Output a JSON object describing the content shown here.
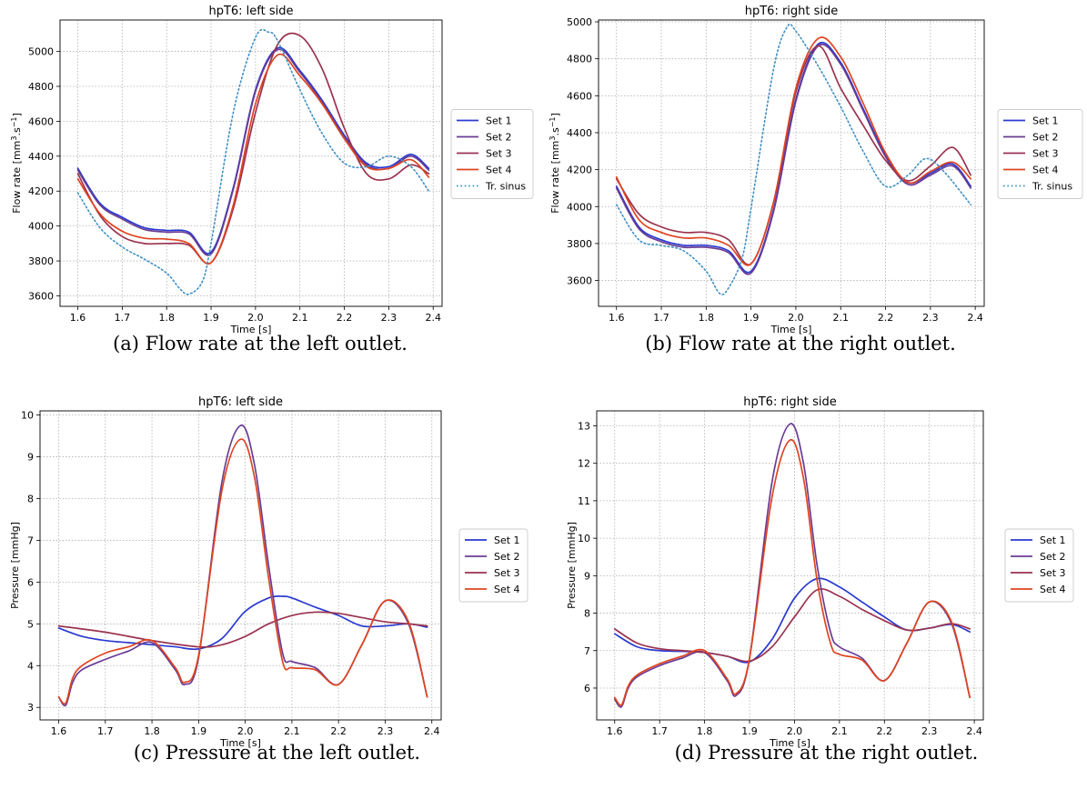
{
  "colors": {
    "set1": "#2a3ad0",
    "set2": "#6a3c94",
    "set3": "#9a3350",
    "set4": "#df4420",
    "sinus": "#3e8fc2"
  },
  "chart_data": [
    {
      "type": "line",
      "title": "hpT6: left side",
      "caption": "(a) Flow rate at the left outlet.",
      "xlabel": "Time [s]",
      "ylabel_main": "Flow rate",
      "ylabel_unit_base": "[mm",
      "ylabel_unit_exp1": "3",
      "ylabel_unit_mid": ".s",
      "ylabel_unit_exp2": "−1",
      "ylabel_unit_close": "]",
      "xlim": [
        1.56,
        2.42
      ],
      "ylim": [
        3540,
        5180
      ],
      "xticks": [
        1.6,
        1.7,
        1.8,
        1.9,
        2.0,
        2.1,
        2.2,
        2.3,
        2.4
      ],
      "xtick_labels": [
        "1.6",
        "1.7",
        "1.8",
        "1.9",
        "2.0",
        "2.1",
        "2.2",
        "2.3",
        "2.4"
      ],
      "yticks": [
        3600,
        3800,
        4000,
        4200,
        4400,
        4600,
        4800,
        5000
      ],
      "ytick_labels": [
        "3600",
        "3800",
        "4000",
        "4200",
        "4400",
        "4600",
        "4800",
        "5000"
      ],
      "grid": true,
      "legend": "right",
      "series": [
        {
          "name": "Set 1",
          "key": "set1",
          "style": "solid",
          "x": [
            1.6,
            1.65,
            1.7,
            1.75,
            1.8,
            1.85,
            1.9,
            1.95,
            2.0,
            2.05,
            2.1,
            2.15,
            2.2,
            2.25,
            2.3,
            2.35,
            2.39
          ],
          "y": [
            4330,
            4130,
            4050,
            3990,
            3975,
            3965,
            3850,
            4220,
            4780,
            5020,
            4890,
            4720,
            4520,
            4360,
            4340,
            4410,
            4330
          ]
        },
        {
          "name": "Set 2",
          "key": "set2",
          "style": "solid",
          "x": [
            1.6,
            1.65,
            1.7,
            1.75,
            1.8,
            1.85,
            1.9,
            1.95,
            2.0,
            2.05,
            2.1,
            2.15,
            2.2,
            2.25,
            2.3,
            2.35,
            2.39
          ],
          "y": [
            4320,
            4120,
            4040,
            3980,
            3965,
            3955,
            3840,
            4210,
            4770,
            5010,
            4880,
            4710,
            4510,
            4350,
            4330,
            4400,
            4320
          ]
        },
        {
          "name": "Set 3",
          "key": "set3",
          "style": "solid",
          "x": [
            1.6,
            1.65,
            1.7,
            1.75,
            1.8,
            1.85,
            1.9,
            1.95,
            2.0,
            2.05,
            2.1,
            2.15,
            2.2,
            2.25,
            2.3,
            2.35,
            2.39
          ],
          "y": [
            4300,
            4060,
            3940,
            3900,
            3900,
            3890,
            3790,
            4100,
            4650,
            5040,
            5090,
            4900,
            4560,
            4300,
            4270,
            4350,
            4300
          ]
        },
        {
          "name": "Set 4",
          "key": "set4",
          "style": "solid",
          "x": [
            1.6,
            1.65,
            1.7,
            1.75,
            1.8,
            1.85,
            1.9,
            1.95,
            2.0,
            2.05,
            2.1,
            2.15,
            2.2,
            2.25,
            2.3,
            2.35,
            2.39
          ],
          "y": [
            4270,
            4070,
            3970,
            3930,
            3925,
            3900,
            3790,
            4120,
            4700,
            4980,
            4860,
            4700,
            4500,
            4340,
            4330,
            4380,
            4280
          ]
        },
        {
          "name": "Tr. sinus",
          "key": "sinus",
          "style": "dotted",
          "x": [
            1.6,
            1.65,
            1.7,
            1.75,
            1.8,
            1.83,
            1.85,
            1.88,
            1.9,
            1.95,
            2.0,
            2.03,
            2.05,
            2.1,
            2.15,
            2.2,
            2.25,
            2.3,
            2.35,
            2.39
          ],
          "y": [
            4190,
            3990,
            3880,
            3810,
            3730,
            3640,
            3610,
            3680,
            3900,
            4650,
            5080,
            5110,
            5060,
            4780,
            4530,
            4360,
            4340,
            4400,
            4340,
            4200
          ]
        }
      ]
    },
    {
      "type": "line",
      "title": "hpT6: right side",
      "caption": "(b) Flow rate at the right outlet.",
      "xlabel": "Time [s]",
      "ylabel_main": "Flow rate",
      "ylabel_unit_base": "[mm",
      "ylabel_unit_exp1": "3",
      "ylabel_unit_mid": ".s",
      "ylabel_unit_exp2": "−1",
      "ylabel_unit_close": "]",
      "xlim": [
        1.56,
        2.42
      ],
      "ylim": [
        3460,
        5010
      ],
      "xticks": [
        1.6,
        1.7,
        1.8,
        1.9,
        2.0,
        2.1,
        2.2,
        2.3,
        2.4
      ],
      "xtick_labels": [
        "1.6",
        "1.7",
        "1.8",
        "1.9",
        "2.0",
        "2.1",
        "2.2",
        "2.3",
        "2.4"
      ],
      "yticks": [
        3600,
        3800,
        4000,
        4200,
        4400,
        4600,
        4800,
        5000
      ],
      "ytick_labels": [
        "3600",
        "3800",
        "4000",
        "4200",
        "4400",
        "4600",
        "4800",
        "5000"
      ],
      "grid": true,
      "legend": "right",
      "series": [
        {
          "name": "Set 1",
          "key": "set1",
          "style": "solid",
          "x": [
            1.6,
            1.65,
            1.7,
            1.75,
            1.8,
            1.85,
            1.9,
            1.95,
            2.0,
            2.05,
            2.1,
            2.15,
            2.2,
            2.25,
            2.3,
            2.35,
            2.39
          ],
          "y": [
            4110,
            3890,
            3820,
            3790,
            3790,
            3760,
            3650,
            3980,
            4580,
            4880,
            4780,
            4530,
            4280,
            4130,
            4180,
            4230,
            4110
          ]
        },
        {
          "name": "Set 2",
          "key": "set2",
          "style": "solid",
          "x": [
            1.6,
            1.65,
            1.7,
            1.75,
            1.8,
            1.85,
            1.9,
            1.95,
            2.0,
            2.05,
            2.1,
            2.15,
            2.2,
            2.25,
            2.3,
            2.35,
            2.39
          ],
          "y": [
            4100,
            3880,
            3810,
            3780,
            3780,
            3750,
            3640,
            3970,
            4570,
            4870,
            4770,
            4520,
            4270,
            4120,
            4170,
            4220,
            4100
          ]
        },
        {
          "name": "Set 3",
          "key": "set3",
          "style": "solid",
          "x": [
            1.6,
            1.65,
            1.7,
            1.75,
            1.8,
            1.85,
            1.9,
            1.95,
            2.0,
            2.05,
            2.1,
            2.15,
            2.2,
            2.25,
            2.3,
            2.35,
            2.39
          ],
          "y": [
            4150,
            3960,
            3890,
            3860,
            3860,
            3820,
            3690,
            4020,
            4620,
            4870,
            4640,
            4440,
            4250,
            4140,
            4220,
            4320,
            4170
          ]
        },
        {
          "name": "Set 4",
          "key": "set4",
          "style": "solid",
          "x": [
            1.6,
            1.65,
            1.7,
            1.75,
            1.8,
            1.85,
            1.9,
            1.95,
            2.0,
            2.05,
            2.1,
            2.15,
            2.2,
            2.25,
            2.3,
            2.35,
            2.39
          ],
          "y": [
            4160,
            3930,
            3860,
            3830,
            3830,
            3790,
            3690,
            4020,
            4640,
            4910,
            4810,
            4560,
            4290,
            4130,
            4190,
            4240,
            4150
          ]
        },
        {
          "name": "Tr. sinus",
          "key": "sinus",
          "style": "dotted",
          "x": [
            1.6,
            1.65,
            1.7,
            1.75,
            1.8,
            1.83,
            1.85,
            1.88,
            1.9,
            1.95,
            1.98,
            2.0,
            2.05,
            2.1,
            2.15,
            2.2,
            2.25,
            2.29,
            2.33,
            2.39
          ],
          "y": [
            4010,
            3820,
            3790,
            3760,
            3650,
            3530,
            3560,
            3720,
            3990,
            4740,
            4970,
            4950,
            4760,
            4540,
            4300,
            4110,
            4170,
            4260,
            4190,
            4010
          ]
        }
      ]
    },
    {
      "type": "line",
      "title": "hpT6: left side",
      "caption": "(c) Pressure at the left outlet.",
      "xlabel": "Time [s]",
      "ylabel": "Pressure [mmHg]",
      "xlim": [
        1.56,
        2.42
      ],
      "ylim": [
        2.7,
        10.1
      ],
      "xticks": [
        1.6,
        1.7,
        1.8,
        1.9,
        2.0,
        2.1,
        2.2,
        2.3,
        2.4
      ],
      "xtick_labels": [
        "1.6",
        "1.7",
        "1.8",
        "1.9",
        "2.0",
        "2.1",
        "2.2",
        "2.3",
        "2.4"
      ],
      "yticks": [
        3,
        4,
        5,
        6,
        7,
        8,
        9,
        10
      ],
      "ytick_labels": [
        "3",
        "4",
        "5",
        "6",
        "7",
        "8",
        "9",
        "10"
      ],
      "grid": true,
      "legend": "right",
      "series": [
        {
          "name": "Set 1",
          "key": "set1",
          "style": "solid",
          "x": [
            1.6,
            1.65,
            1.7,
            1.75,
            1.8,
            1.85,
            1.9,
            1.95,
            2.0,
            2.05,
            2.08,
            2.1,
            2.15,
            2.2,
            2.25,
            2.3,
            2.35,
            2.39
          ],
          "y": [
            4.9,
            4.7,
            4.6,
            4.55,
            4.5,
            4.45,
            4.4,
            4.65,
            5.3,
            5.62,
            5.66,
            5.62,
            5.4,
            5.2,
            4.95,
            4.95,
            5.0,
            4.92
          ]
        },
        {
          "name": "Set 2",
          "key": "set2",
          "style": "solid",
          "x": [
            1.6,
            1.615,
            1.63,
            1.65,
            1.7,
            1.75,
            1.8,
            1.85,
            1.87,
            1.9,
            1.95,
            1.99,
            2.02,
            2.05,
            2.08,
            2.1,
            2.15,
            2.2,
            2.25,
            2.3,
            2.35,
            2.39
          ],
          "y": [
            3.25,
            3.05,
            3.6,
            3.9,
            4.15,
            4.35,
            4.55,
            3.9,
            3.55,
            4.2,
            8.4,
            9.75,
            8.8,
            6.4,
            4.3,
            4.1,
            3.95,
            3.55,
            4.5,
            5.55,
            5.0,
            3.25
          ]
        },
        {
          "name": "Set 3",
          "key": "set3",
          "style": "solid",
          "x": [
            1.6,
            1.7,
            1.8,
            1.9,
            1.95,
            2.0,
            2.05,
            2.1,
            2.15,
            2.2,
            2.25,
            2.3,
            2.35,
            2.39
          ],
          "y": [
            4.95,
            4.8,
            4.6,
            4.45,
            4.5,
            4.7,
            5.0,
            5.2,
            5.28,
            5.25,
            5.15,
            5.05,
            5.0,
            4.95
          ]
        },
        {
          "name": "Set 4",
          "key": "set4",
          "style": "solid",
          "x": [
            1.6,
            1.615,
            1.63,
            1.65,
            1.7,
            1.75,
            1.8,
            1.85,
            1.87,
            1.9,
            1.95,
            1.99,
            2.02,
            2.05,
            2.08,
            2.1,
            2.15,
            2.2,
            2.25,
            2.3,
            2.35,
            2.39
          ],
          "y": [
            3.25,
            3.1,
            3.7,
            4.0,
            4.3,
            4.45,
            4.6,
            3.95,
            3.6,
            4.25,
            8.2,
            9.42,
            8.5,
            6.1,
            4.1,
            3.95,
            3.9,
            3.55,
            4.5,
            5.55,
            5.05,
            3.25
          ]
        }
      ]
    },
    {
      "type": "line",
      "title": "hpT6: right side",
      "caption": "(d) Pressure at the right outlet.",
      "xlabel": "Time [s]",
      "ylabel": "Pressure [mmHg]",
      "xlim": [
        1.56,
        2.42
      ],
      "ylim": [
        5.15,
        13.4
      ],
      "xticks": [
        1.6,
        1.7,
        1.8,
        1.9,
        2.0,
        2.1,
        2.2,
        2.3,
        2.4
      ],
      "xtick_labels": [
        "1.6",
        "1.7",
        "1.8",
        "1.9",
        "2.0",
        "2.1",
        "2.2",
        "2.3",
        "2.4"
      ],
      "yticks": [
        6,
        7,
        8,
        9,
        10,
        11,
        12,
        13
      ],
      "ytick_labels": [
        "6",
        "7",
        "8",
        "9",
        "10",
        "11",
        "12",
        "13"
      ],
      "grid": true,
      "legend": "right",
      "series": [
        {
          "name": "Set 1",
          "key": "set1",
          "style": "solid",
          "x": [
            1.6,
            1.65,
            1.7,
            1.75,
            1.8,
            1.85,
            1.9,
            1.95,
            2.0,
            2.05,
            2.1,
            2.15,
            2.2,
            2.25,
            2.3,
            2.35,
            2.39
          ],
          "y": [
            7.45,
            7.1,
            7.0,
            6.98,
            6.95,
            6.85,
            6.7,
            7.3,
            8.4,
            8.92,
            8.7,
            8.3,
            7.9,
            7.55,
            7.6,
            7.7,
            7.5
          ]
        },
        {
          "name": "Set 2",
          "key": "set2",
          "style": "solid",
          "x": [
            1.6,
            1.615,
            1.63,
            1.65,
            1.7,
            1.75,
            1.8,
            1.85,
            1.87,
            1.9,
            1.95,
            1.99,
            2.02,
            2.05,
            2.08,
            2.1,
            2.15,
            2.2,
            2.25,
            2.3,
            2.35,
            2.39
          ],
          "y": [
            5.7,
            5.5,
            6.0,
            6.3,
            6.6,
            6.8,
            6.95,
            6.2,
            5.8,
            6.8,
            11.5,
            13.05,
            12.0,
            9.3,
            7.5,
            7.1,
            6.8,
            6.2,
            7.2,
            8.3,
            7.7,
            5.75
          ]
        },
        {
          "name": "Set 3",
          "key": "set3",
          "style": "solid",
          "x": [
            1.6,
            1.65,
            1.7,
            1.75,
            1.8,
            1.85,
            1.9,
            1.95,
            2.0,
            2.05,
            2.1,
            2.15,
            2.2,
            2.25,
            2.3,
            2.35,
            2.39
          ],
          "y": [
            7.58,
            7.2,
            7.05,
            7.0,
            6.95,
            6.85,
            6.72,
            7.1,
            7.9,
            8.62,
            8.45,
            8.1,
            7.8,
            7.55,
            7.6,
            7.72,
            7.58
          ]
        },
        {
          "name": "Set 4",
          "key": "set4",
          "style": "solid",
          "x": [
            1.6,
            1.615,
            1.63,
            1.65,
            1.7,
            1.75,
            1.8,
            1.85,
            1.87,
            1.9,
            1.95,
            1.99,
            2.02,
            2.05,
            2.08,
            2.1,
            2.15,
            2.2,
            2.25,
            2.3,
            2.35,
            2.39
          ],
          "y": [
            5.75,
            5.55,
            6.05,
            6.35,
            6.65,
            6.85,
            7.0,
            6.25,
            5.85,
            6.8,
            11.1,
            12.62,
            11.6,
            8.9,
            7.2,
            6.9,
            6.75,
            6.2,
            7.2,
            8.3,
            7.75,
            5.75
          ]
        }
      ]
    }
  ]
}
